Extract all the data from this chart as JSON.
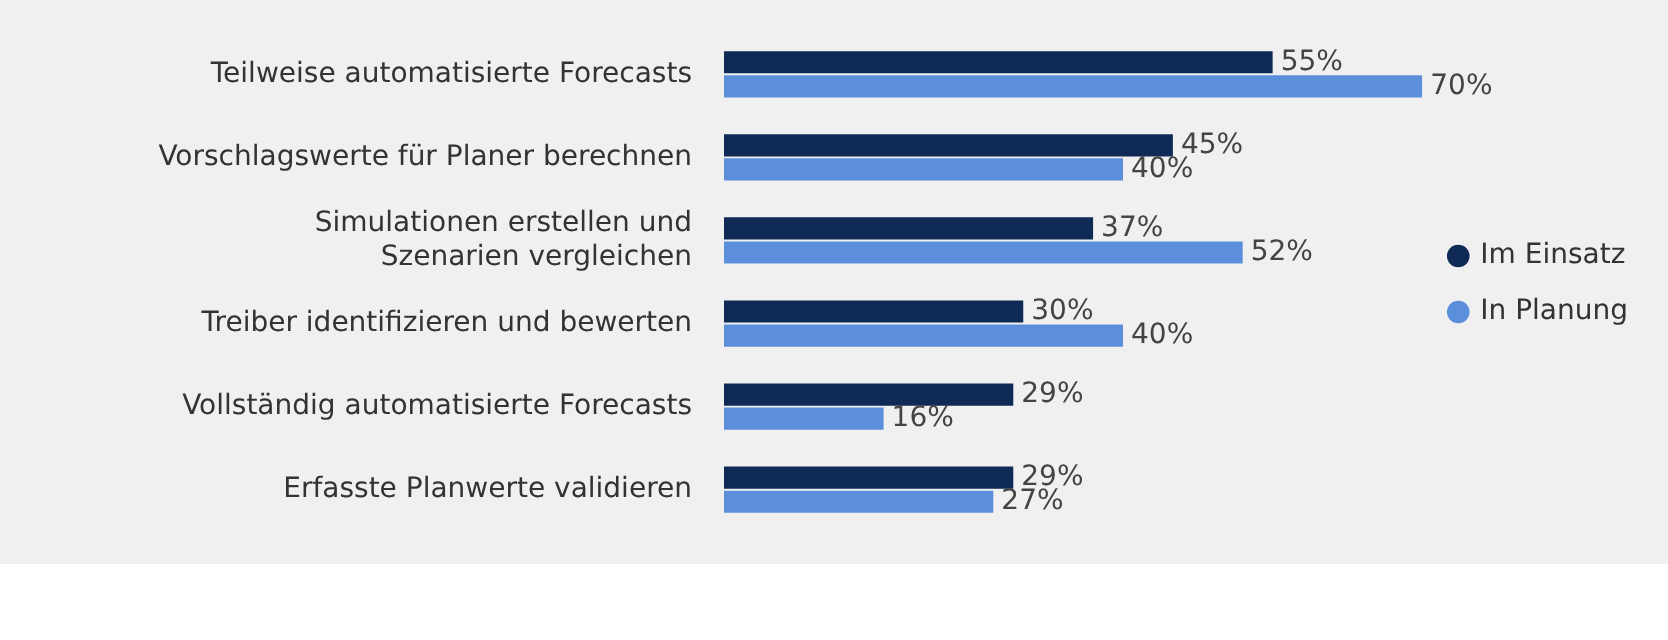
{
  "chart_data": {
    "type": "bar",
    "orientation": "horizontal",
    "categories": [
      "Teilweise automatisierte Forecasts",
      "Vorschlagswerte für Planer berechnen",
      "Simulationen erstellen und\nSzenarien vergleichen",
      "Treiber identifizieren und bewerten",
      "Vollständig automatisierte Forecasts",
      "Erfasste Planwerte validieren"
    ],
    "series": [
      {
        "name": "Im Einsatz",
        "color": "#0e2a55",
        "values": [
          55,
          45,
          37,
          30,
          29,
          29
        ],
        "value_labels": [
          "55%",
          "45%",
          "37%",
          "30%",
          "29%",
          "29%"
        ]
      },
      {
        "name": "In Planung",
        "color": "#5b8fdc",
        "values": [
          70,
          40,
          52,
          40,
          16,
          27
        ],
        "value_labels": [
          "70%",
          "40%",
          "52%",
          "40%",
          "16%",
          "27%"
        ]
      }
    ],
    "legend": "right",
    "tick_labels": "y"
  }
}
